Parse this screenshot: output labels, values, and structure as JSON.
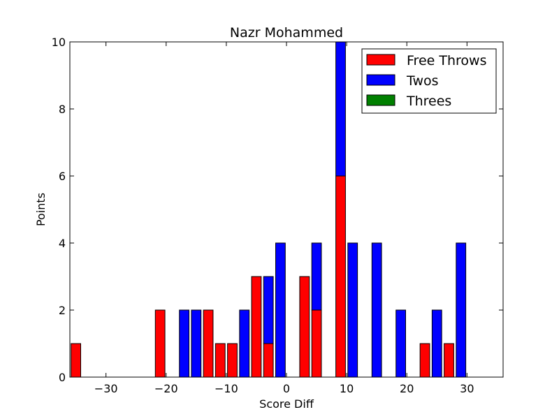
{
  "chart_data": {
    "type": "bar",
    "stacked": true,
    "title": "Nazr Mohammed",
    "xlabel": "Score Diff",
    "ylabel": "Points",
    "xlim": [
      -36,
      36
    ],
    "ylim": [
      0,
      10
    ],
    "xticks": [
      -30,
      -20,
      -10,
      0,
      10,
      20,
      30
    ],
    "yticks": [
      0,
      2,
      4,
      6,
      8,
      10
    ],
    "bar_width": 1.6,
    "grid": false,
    "legend_position": "top-right",
    "x": [
      -35,
      -33,
      -31,
      -29,
      -27,
      -25,
      -23,
      -21,
      -19,
      -17,
      -15,
      -13,
      -11,
      -9,
      -7,
      -5,
      -3,
      -1,
      1,
      3,
      5,
      7,
      9,
      11,
      13,
      15,
      17,
      19,
      21,
      23,
      25,
      27,
      29,
      31,
      33,
      35
    ],
    "series": [
      {
        "name": "Free Throws",
        "color": "#ff0000",
        "values": [
          1,
          0,
          0,
          0,
          0,
          0,
          0,
          2,
          0,
          0,
          0,
          2,
          1,
          1,
          0,
          3,
          1,
          0,
          0,
          3,
          2,
          0,
          6,
          0,
          0,
          0,
          0,
          0,
          0,
          1,
          0,
          1,
          0,
          0,
          0,
          0
        ]
      },
      {
        "name": "Twos",
        "color": "#0000ff",
        "values": [
          0,
          0,
          0,
          0,
          0,
          0,
          0,
          0,
          0,
          2,
          2,
          0,
          0,
          0,
          2,
          0,
          2,
          4,
          0,
          0,
          2,
          0,
          4,
          4,
          0,
          4,
          0,
          2,
          0,
          0,
          2,
          0,
          4,
          0,
          0,
          0
        ]
      },
      {
        "name": "Threes",
        "color": "#008000",
        "values": [
          0,
          0,
          0,
          0,
          0,
          0,
          0,
          0,
          0,
          0,
          0,
          0,
          0,
          0,
          0,
          0,
          0,
          0,
          0,
          0,
          0,
          0,
          0,
          0,
          0,
          0,
          0,
          0,
          0,
          0,
          0,
          0,
          0,
          0,
          0,
          0
        ]
      }
    ]
  }
}
